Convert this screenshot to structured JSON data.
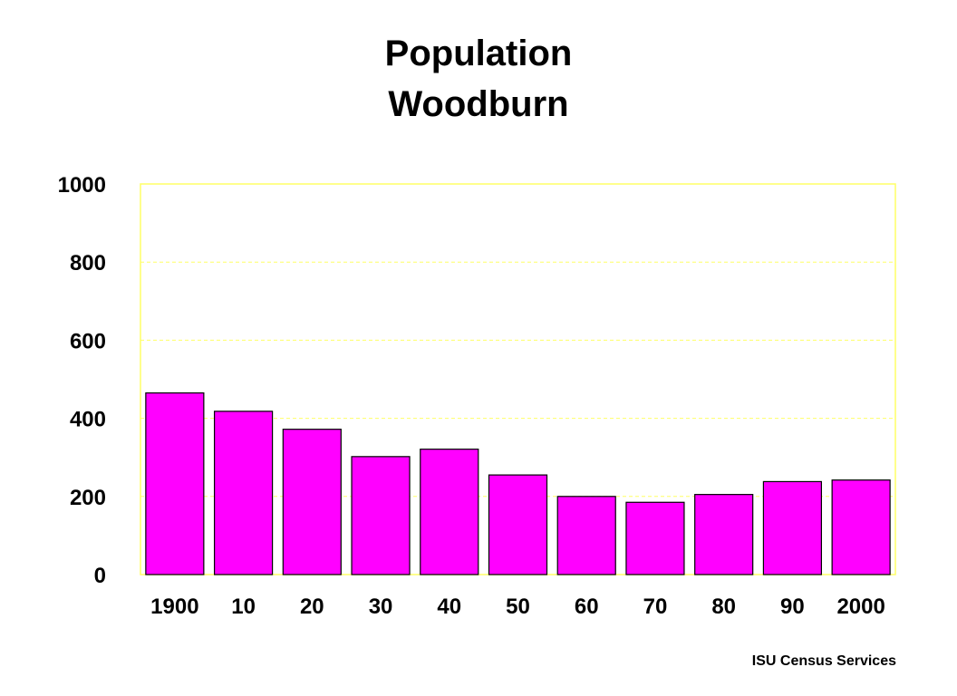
{
  "chart_data": {
    "type": "bar",
    "title": [
      "Population",
      "Woodburn"
    ],
    "categories": [
      "1900",
      "10",
      "20",
      "30",
      "40",
      "50",
      "60",
      "70",
      "80",
      "90",
      "2000"
    ],
    "series": [
      {
        "values": [
          465,
          418,
          372,
          302,
          321,
          255,
          200,
          185,
          205,
          238,
          242
        ]
      }
    ],
    "ylim": [
      0,
      1000
    ],
    "yticks": [
      0,
      200,
      400,
      600,
      800,
      1000
    ],
    "grid": true,
    "colors": {
      "bar": "#ff00ff",
      "bar_outline": "#000000",
      "grid": "#ffff66",
      "axis_frame": "#ffff66"
    }
  },
  "source": "ISU Census Services"
}
